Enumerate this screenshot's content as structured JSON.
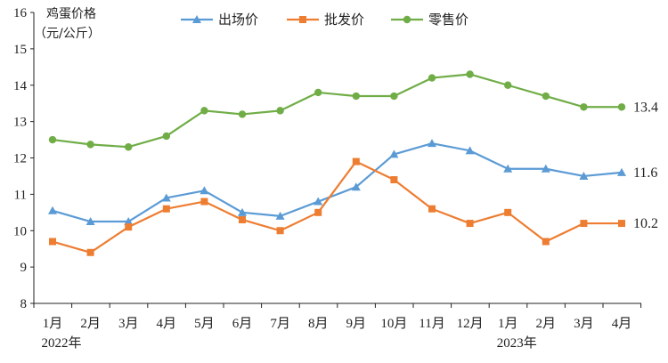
{
  "chart_data": {
    "type": "line",
    "ylabel_line1": "鸡蛋价格",
    "ylabel_line2": "（元/公斤）",
    "ylim": [
      8,
      16
    ],
    "y_ticks": [
      "8",
      "9",
      "10",
      "11",
      "12",
      "13",
      "14",
      "15",
      "16"
    ],
    "categories": [
      "1月",
      "2月",
      "3月",
      "4月",
      "5月",
      "6月",
      "7月",
      "8月",
      "9月",
      "10月",
      "11月",
      "12月",
      "1月",
      "2月",
      "3月",
      "4月"
    ],
    "year_labels": [
      {
        "label": "2022年",
        "category_index": 0
      },
      {
        "label": "2023年",
        "category_index": 12
      }
    ],
    "legend_position": "top",
    "grid": false,
    "series": [
      {
        "name": "出场价",
        "color": "#5B9BD5",
        "marker": "triangle",
        "values": [
          10.55,
          10.25,
          10.25,
          10.9,
          11.1,
          10.5,
          10.4,
          10.8,
          11.2,
          12.1,
          12.4,
          12.2,
          11.7,
          11.7,
          11.5,
          11.6
        ],
        "end_label": "11.6"
      },
      {
        "name": "批发价",
        "color": "#ED7D31",
        "marker": "square",
        "values": [
          9.7,
          9.4,
          10.1,
          10.6,
          10.8,
          10.3,
          10.0,
          10.5,
          11.9,
          11.4,
          10.6,
          10.2,
          10.5,
          9.7,
          10.2,
          10.2
        ],
        "end_label": "10.2"
      },
      {
        "name": "零售价",
        "color": "#70AD47",
        "marker": "circle",
        "values": [
          12.5,
          12.37,
          12.3,
          12.6,
          13.3,
          13.2,
          13.3,
          13.8,
          13.7,
          13.7,
          14.2,
          14.3,
          14.0,
          13.7,
          13.4,
          13.4
        ],
        "end_label": "13.4"
      }
    ]
  }
}
